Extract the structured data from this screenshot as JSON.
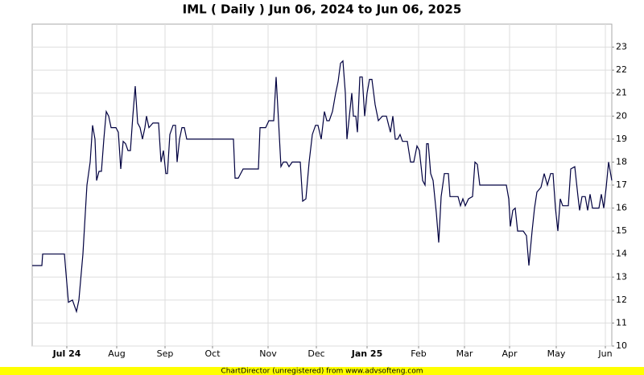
{
  "chart_data": {
    "type": "line",
    "title": "IML ( Daily ) Jun 06, 2024 to Jun 06, 2025",
    "footer": "ChartDirector (unregistered) from www.advsofteng.com",
    "color": "#000040",
    "grid": true,
    "xlim": [
      0,
      720
    ],
    "ylim": [
      10,
      24
    ],
    "yticks": [
      10,
      11,
      12,
      13,
      14,
      15,
      16,
      17,
      18,
      19,
      20,
      21,
      22,
      23
    ],
    "xticks": [
      {
        "value": 43,
        "label": "Jul 24"
      },
      {
        "value": 105,
        "label": "Aug"
      },
      {
        "value": 165,
        "label": "Sep"
      },
      {
        "value": 224,
        "label": "Oct"
      },
      {
        "value": 293,
        "label": "Nov"
      },
      {
        "value": 353,
        "label": "Dec"
      },
      {
        "value": 416,
        "label": "Jan 25"
      },
      {
        "value": 480,
        "label": "Feb"
      },
      {
        "value": 537,
        "label": "Mar"
      },
      {
        "value": 593,
        "label": "Apr"
      },
      {
        "value": 651,
        "label": "May"
      },
      {
        "value": 712,
        "label": "Jun"
      }
    ],
    "x": [
      0,
      12,
      13,
      40,
      45,
      50,
      55,
      58,
      63,
      68,
      72,
      75,
      78,
      80,
      83,
      86,
      89,
      92,
      95,
      98,
      104,
      107,
      110,
      113,
      116,
      119,
      122,
      125,
      128,
      131,
      134,
      137,
      140,
      142,
      145,
      150,
      157,
      160,
      163,
      166,
      168,
      171,
      175,
      178,
      180,
      183,
      186,
      189,
      192,
      200,
      250,
      252,
      256,
      262,
      278,
      281,
      283,
      290,
      294,
      300,
      303,
      306,
      309,
      312,
      316,
      319,
      323,
      333,
      336,
      340,
      344,
      348,
      352,
      355,
      359,
      363,
      366,
      369,
      373,
      377,
      380,
      383,
      386,
      389,
      391,
      394,
      397,
      399,
      402,
      404,
      407,
      410,
      413,
      416,
      419,
      422,
      426,
      430,
      435,
      440,
      445,
      448,
      451,
      454,
      457,
      460,
      466,
      470,
      474,
      478,
      481,
      485,
      488,
      490,
      492,
      495,
      498,
      502,
      505,
      508,
      512,
      517,
      519,
      525,
      529,
      532,
      535,
      538,
      542,
      547,
      550,
      553,
      556,
      565,
      589,
      592,
      594,
      597,
      600,
      603,
      606,
      610,
      614,
      617,
      621,
      624,
      627,
      632,
      636,
      640,
      644,
      647,
      650,
      653,
      656,
      659,
      666,
      669,
      674,
      678,
      680,
      683,
      687,
      690,
      693,
      696,
      704,
      707,
      710,
      713,
      716,
      720
    ],
    "values": [
      13.5,
      13.5,
      14.0,
      14.0,
      11.9,
      12.0,
      11.5,
      12.0,
      14.0,
      17.0,
      18.0,
      19.6,
      19.0,
      17.2,
      17.6,
      17.6,
      19.0,
      20.2,
      20.0,
      19.5,
      19.5,
      19.3,
      17.7,
      18.9,
      18.8,
      18.5,
      18.5,
      20.0,
      21.3,
      19.7,
      19.5,
      19.0,
      19.5,
      20.0,
      19.5,
      19.7,
      19.7,
      18.0,
      18.5,
      17.5,
      17.5,
      19.2,
      19.6,
      19.6,
      18.0,
      19.0,
      19.5,
      19.5,
      19.0,
      19.0,
      19.0,
      17.3,
      17.3,
      17.7,
      17.7,
      17.7,
      19.5,
      19.5,
      19.8,
      19.8,
      21.7,
      19.8,
      17.8,
      18.0,
      18.0,
      17.8,
      18.0,
      18.0,
      16.3,
      16.4,
      18.0,
      19.2,
      19.6,
      19.6,
      19.0,
      20.2,
      19.8,
      19.8,
      20.2,
      21.0,
      21.5,
      22.3,
      22.4,
      21.0,
      19.0,
      20.0,
      21.0,
      20.0,
      20.0,
      19.3,
      21.7,
      21.7,
      20.0,
      21.0,
      21.6,
      21.6,
      20.5,
      19.8,
      20.0,
      20.0,
      19.3,
      20.0,
      19.0,
      19.0,
      19.2,
      18.9,
      18.9,
      18.0,
      18.0,
      18.7,
      18.5,
      17.2,
      17.0,
      18.8,
      18.8,
      17.5,
      17.2,
      15.8,
      14.5,
      16.5,
      17.5,
      17.5,
      16.5,
      16.5,
      16.5,
      16.1,
      16.4,
      16.1,
      16.4,
      16.5,
      18.0,
      17.9,
      17.0,
      17.0,
      17.0,
      16.4,
      15.2,
      15.9,
      16.0,
      15.0,
      15.0,
      15.0,
      14.8,
      13.5,
      15.0,
      16.0,
      16.7,
      16.9,
      17.5,
      17.0,
      17.5,
      17.5,
      16.0,
      15.0,
      16.4,
      16.1,
      16.1,
      17.7,
      17.8,
      16.5,
      15.9,
      16.5,
      16.5,
      15.9,
      16.6,
      16.0,
      16.0,
      16.6,
      16.0,
      16.9,
      18.0,
      17.2
    ]
  }
}
